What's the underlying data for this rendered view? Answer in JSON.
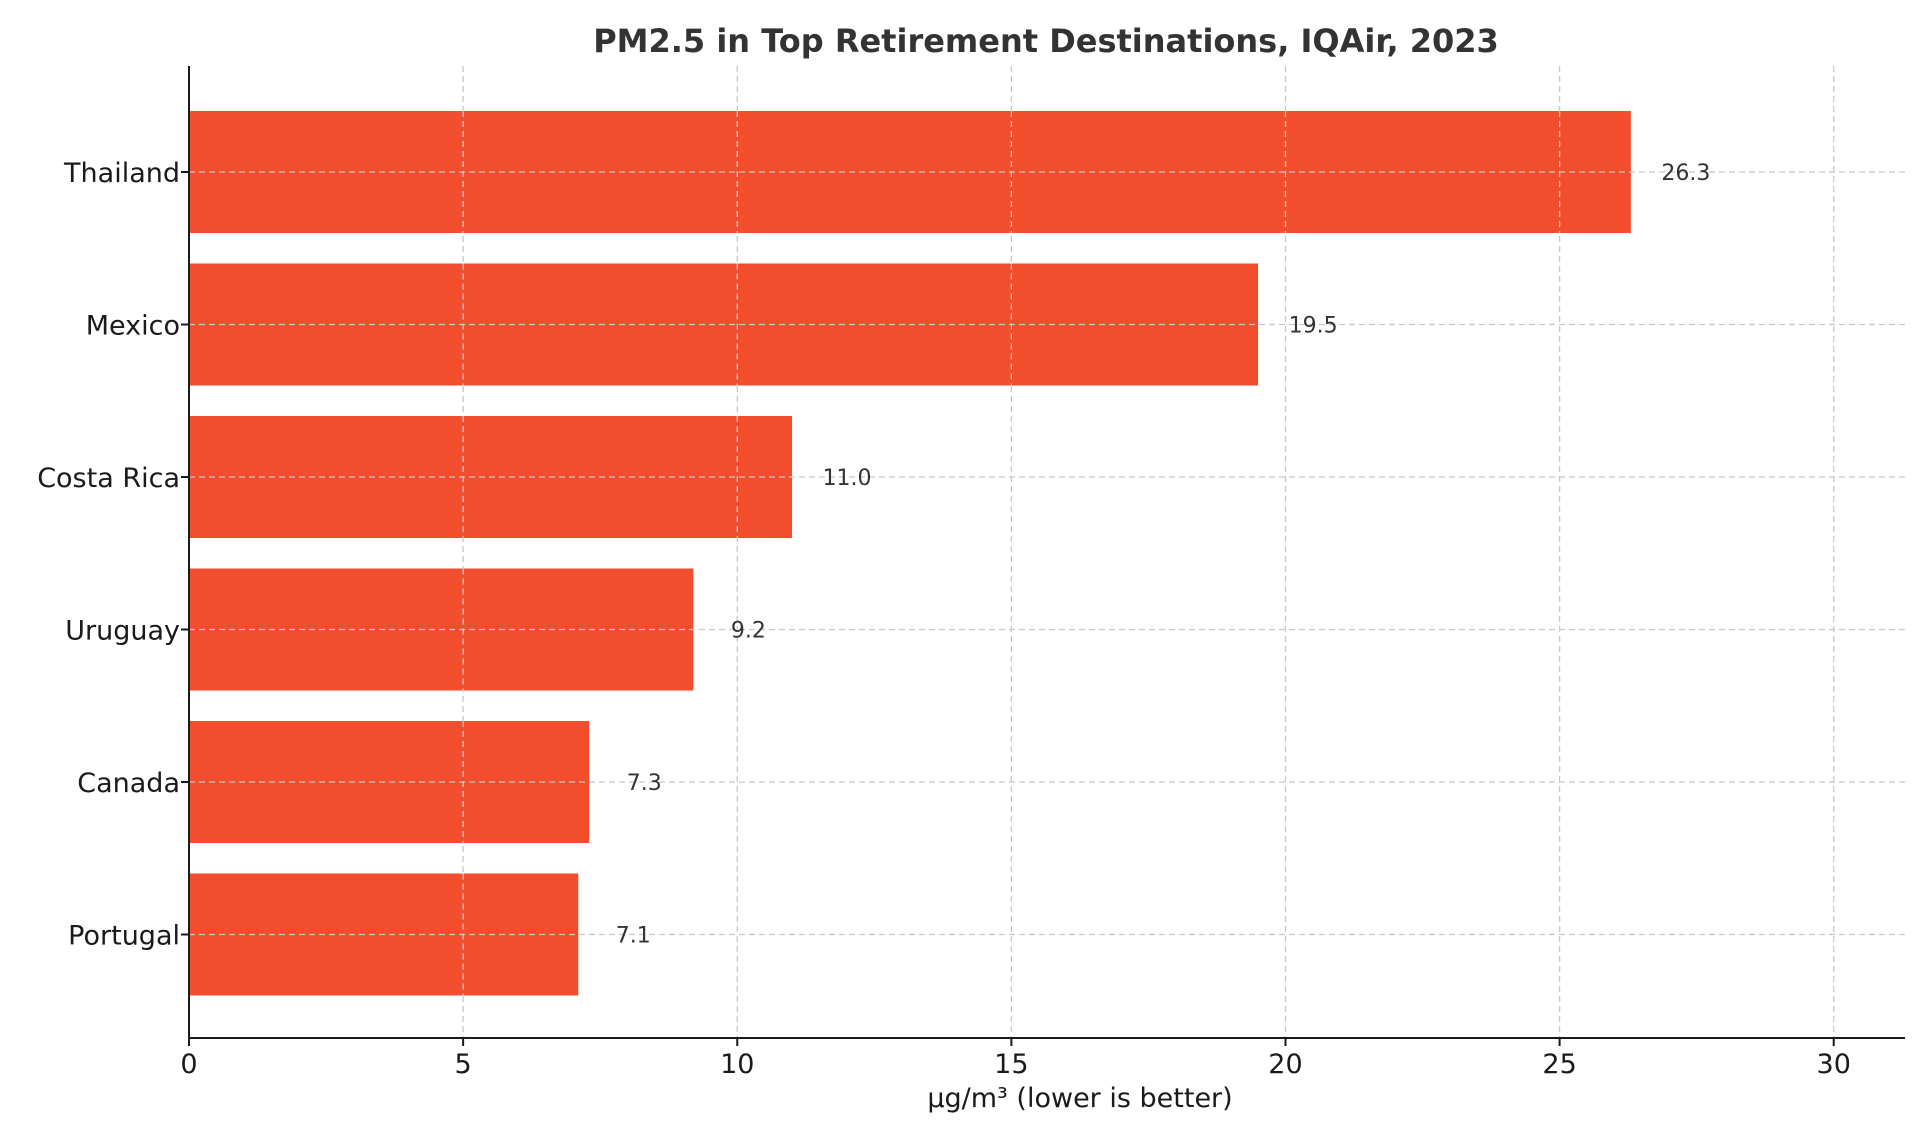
{
  "chart_data": {
    "type": "bar",
    "orientation": "horizontal",
    "title": "PM2.5 in Top Retirement Destinations, IQAir, 2023",
    "xlabel": "µg/m³ (lower is better)",
    "ylabel": "",
    "categories": [
      "Thailand",
      "Mexico",
      "Costa Rica",
      "Uruguay",
      "Canada",
      "Portugal"
    ],
    "values": [
      26.3,
      19.5,
      11.0,
      9.2,
      7.3,
      7.1
    ],
    "value_labels": [
      "26.3",
      "19.5",
      "11.0",
      "9.2",
      "7.3",
      "7.1"
    ],
    "xlim": [
      0,
      31.3
    ],
    "xticks": [
      0,
      5,
      10,
      15,
      20,
      25,
      30
    ],
    "xtick_labels": [
      "0",
      "5",
      "10",
      "15",
      "20",
      "25",
      "30"
    ],
    "grid": true,
    "bar_color": "#f24e2e",
    "grid_color": "#c8c8c8"
  }
}
